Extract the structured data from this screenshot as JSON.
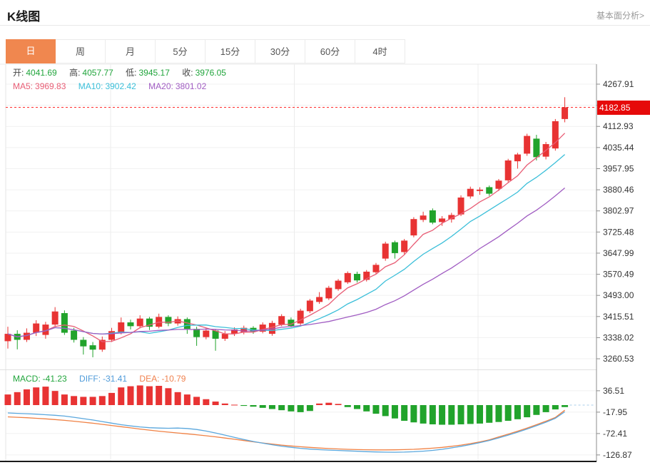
{
  "header": {
    "title": "K线图",
    "link": "基本面分析>"
  },
  "tabs": [
    {
      "name": "tab-day",
      "label": "日",
      "active": true
    },
    {
      "name": "tab-week",
      "label": "周",
      "active": false
    },
    {
      "name": "tab-month",
      "label": "月",
      "active": false
    },
    {
      "name": "tab-5min",
      "label": "5分",
      "active": false
    },
    {
      "name": "tab-15min",
      "label": "15分",
      "active": false
    },
    {
      "name": "tab-30min",
      "label": "30分",
      "active": false
    },
    {
      "name": "tab-60min",
      "label": "60分",
      "active": false
    },
    {
      "name": "tab-4hour",
      "label": "4时",
      "active": false
    }
  ],
  "ohlc": {
    "open_label": "开:",
    "open": "4041.69",
    "high_label": "高:",
    "high": "4057.77",
    "low_label": "低:",
    "low": "3945.17",
    "close_label": "收:",
    "close": "3976.05"
  },
  "ma": {
    "ma5_label": "MA5:",
    "ma5": "3969.83",
    "ma10_label": "MA10:",
    "ma10": "3902.42",
    "ma20_label": "MA20:",
    "ma20": "3801.02"
  },
  "macd_readout": {
    "macd_label": "MACD:",
    "macd": "-41.23",
    "diff_label": "DIFF:",
    "diff": "-31.41",
    "dea_label": "DEA:",
    "dea": "-10.79"
  },
  "price_tag": "4182.85",
  "colors": {
    "accent_tab": "#f0874f",
    "up": "#e83333",
    "down": "#21a32b",
    "ma5": "#e85d75",
    "ma10": "#3bbfd9",
    "ma20": "#a05cc2",
    "value_green": "#21a53c",
    "diff_text": "#4f9bd9",
    "dea_text": "#f0824f",
    "diff_line": "#5aa7dd",
    "dea_line": "#f08144",
    "price_line": "#ff2d2d",
    "tag_bg": "#e60a0a",
    "dashed_ext": "#a8cdea"
  },
  "chart_data": {
    "type": "candlestick",
    "panels": [
      "price",
      "macd"
    ],
    "legend": [
      "MA5",
      "MA10",
      "MA20"
    ],
    "ma_periods": [
      5,
      10,
      20
    ],
    "current_price": 4182.85,
    "y_ticks_price": [
      "4267.91",
      "4190.42",
      "4112.93",
      "4035.44",
      "3957.95",
      "3880.46",
      "3802.97",
      "3725.48",
      "3647.99",
      "3570.49",
      "3493.00",
      "3415.51",
      "3338.02",
      "3260.53"
    ],
    "price_axis_range": [
      3260.53,
      4267.91
    ],
    "candles_ohlc": [
      [
        3325,
        3378,
        3298,
        3352
      ],
      [
        3352,
        3365,
        3295,
        3330
      ],
      [
        3330,
        3372,
        3322,
        3356
      ],
      [
        3356,
        3402,
        3344,
        3390
      ],
      [
        3348,
        3396,
        3334,
        3386
      ],
      [
        3386,
        3450,
        3378,
        3434
      ],
      [
        3428,
        3438,
        3348,
        3356
      ],
      [
        3364,
        3374,
        3320,
        3330
      ],
      [
        3330,
        3340,
        3276,
        3306
      ],
      [
        3310,
        3322,
        3266,
        3294
      ],
      [
        3294,
        3342,
        3286,
        3330
      ],
      [
        3330,
        3374,
        3322,
        3362
      ],
      [
        3358,
        3412,
        3350,
        3394
      ],
      [
        3394,
        3404,
        3368,
        3380
      ],
      [
        3380,
        3420,
        3372,
        3408
      ],
      [
        3408,
        3414,
        3366,
        3378
      ],
      [
        3378,
        3426,
        3372,
        3414
      ],
      [
        3414,
        3420,
        3380,
        3390
      ],
      [
        3390,
        3416,
        3382,
        3406
      ],
      [
        3406,
        3412,
        3352,
        3370
      ],
      [
        3370,
        3378,
        3308,
        3340
      ],
      [
        3340,
        3372,
        3332,
        3364
      ],
      [
        3364,
        3370,
        3290,
        3334
      ],
      [
        3334,
        3362,
        3326,
        3352
      ],
      [
        3352,
        3376,
        3344,
        3368
      ],
      [
        3358,
        3382,
        3350,
        3374
      ],
      [
        3374,
        3380,
        3352,
        3360
      ],
      [
        3360,
        3394,
        3354,
        3386
      ],
      [
        3352,
        3400,
        3345,
        3392
      ],
      [
        3386,
        3424,
        3380,
        3417
      ],
      [
        3404,
        3412,
        3376,
        3381
      ],
      [
        3390,
        3444,
        3384,
        3437
      ],
      [
        3435,
        3480,
        3428,
        3474
      ],
      [
        3469,
        3505,
        3462,
        3487
      ],
      [
        3482,
        3528,
        3476,
        3521
      ],
      [
        3516,
        3553,
        3510,
        3547
      ],
      [
        3541,
        3581,
        3535,
        3575
      ],
      [
        3572,
        3580,
        3540,
        3548
      ],
      [
        3550,
        3586,
        3544,
        3580
      ],
      [
        3578,
        3612,
        3570,
        3605
      ],
      [
        3628,
        3690,
        3620,
        3683
      ],
      [
        3688,
        3694,
        3628,
        3648
      ],
      [
        3652,
        3700,
        3644,
        3694
      ],
      [
        3713,
        3780,
        3706,
        3773
      ],
      [
        3770,
        3800,
        3762,
        3786
      ],
      [
        3805,
        3812,
        3754,
        3760
      ],
      [
        3762,
        3784,
        3748,
        3775
      ],
      [
        3772,
        3796,
        3760,
        3788
      ],
      [
        3790,
        3860,
        3784,
        3852
      ],
      [
        3856,
        3892,
        3848,
        3884
      ],
      [
        3876,
        3890,
        3862,
        3881
      ],
      [
        3890,
        3896,
        3858,
        3866
      ],
      [
        3884,
        3920,
        3876,
        3914
      ],
      [
        3915,
        3994,
        3908,
        3988
      ],
      [
        3985,
        4016,
        3958,
        4010
      ],
      [
        4013,
        4086,
        4005,
        4078
      ],
      [
        4068,
        4082,
        3988,
        4000
      ],
      [
        4002,
        4056,
        3992,
        4048
      ],
      [
        4032,
        4140,
        4024,
        4132
      ],
      [
        4140,
        4220,
        4128,
        4183
      ]
    ],
    "macd": {
      "y_ticks": [
        "36.51",
        "-17.95",
        "-72.41",
        "-126.87"
      ],
      "hist": [
        27,
        33,
        40,
        45,
        47,
        36,
        27,
        23,
        21,
        21,
        23,
        31,
        45,
        48,
        50,
        48,
        49,
        43,
        33,
        27,
        21,
        15,
        9,
        4,
        1,
        -2,
        -4,
        -7,
        -10,
        -13,
        -16,
        -18,
        -15,
        4,
        6,
        3,
        -5,
        -10,
        -16,
        -22,
        -28,
        -34,
        -40,
        -44,
        -47,
        -49,
        -50,
        -50,
        -49,
        -48,
        -47,
        -45,
        -43,
        -40,
        -36,
        -31,
        -25,
        -18,
        -11,
        -5
      ],
      "diff": [
        -20,
        -21,
        -22,
        -23,
        -24.5,
        -26,
        -28,
        -31,
        -34.5,
        -38,
        -42,
        -46,
        -50,
        -53,
        -55.5,
        -57.5,
        -58.5,
        -59,
        -58.5,
        -59.5,
        -62,
        -66,
        -71,
        -76.5,
        -82,
        -87.5,
        -92.5,
        -97,
        -101,
        -104.5,
        -107.5,
        -110,
        -112,
        -113.5,
        -114.5,
        -115.5,
        -116.5,
        -117.5,
        -118.5,
        -119.3,
        -119.8,
        -120,
        -119.7,
        -118.8,
        -117.3,
        -115.2,
        -112.5,
        -109,
        -105,
        -100.5,
        -95.5,
        -90,
        -83.5,
        -76.5,
        -69,
        -61,
        -52.5,
        -43.5,
        -33.5,
        -17
      ],
      "dea": [
        -30,
        -31,
        -32.2,
        -33.5,
        -35,
        -36.8,
        -38.8,
        -41,
        -43.5,
        -46.2,
        -49,
        -52,
        -55,
        -58,
        -61,
        -63.8,
        -66.4,
        -68.8,
        -71,
        -73.2,
        -75.5,
        -78,
        -80.8,
        -83.8,
        -87,
        -90.2,
        -93.4,
        -96.4,
        -99.2,
        -101.8,
        -104,
        -106,
        -107.7,
        -109.2,
        -110.5,
        -111.6,
        -112.5,
        -113.2,
        -113.7,
        -114,
        -114,
        -113.8,
        -113.3,
        -112.5,
        -111.3,
        -109.7,
        -107.6,
        -105,
        -101.8,
        -98,
        -93.6,
        -88.6,
        -81,
        -74,
        -66.5,
        -58.5,
        -50,
        -41,
        -31.5,
        -13
      ]
    }
  }
}
